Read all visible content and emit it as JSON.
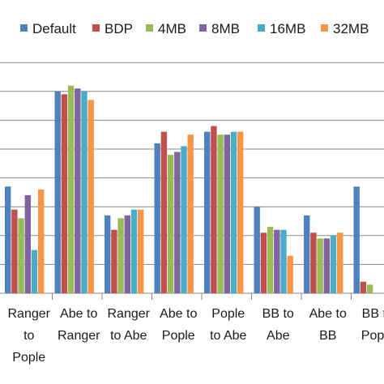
{
  "chart_data": {
    "type": "bar",
    "title": "",
    "xlabel": "",
    "ylabel": "",
    "ylim": [
      0,
      10
    ],
    "grid": true,
    "legend_position": "top",
    "categories": [
      [
        "Ranger",
        "to",
        "Pople"
      ],
      [
        "Abe to",
        "Ranger"
      ],
      [
        "Ranger",
        "to Abe"
      ],
      [
        "Abe to",
        "Pople"
      ],
      [
        "Pople",
        "to Abe"
      ],
      [
        "BB to",
        "Abe"
      ],
      [
        "Abe to",
        "BB"
      ],
      [
        "BB to",
        "Pople"
      ]
    ],
    "series": [
      {
        "name": "Default",
        "color": "#4F81BD",
        "values": [
          3.7,
          7.0,
          2.7,
          5.2,
          5.6,
          3.0,
          2.7,
          3.7
        ]
      },
      {
        "name": "BDP",
        "color": "#C0504D",
        "values": [
          2.9,
          6.9,
          2.2,
          5.6,
          5.8,
          2.1,
          2.1,
          0.4
        ]
      },
      {
        "name": "4MB",
        "color": "#9BBB59",
        "values": [
          2.6,
          7.2,
          2.6,
          4.8,
          5.5,
          2.3,
          1.9,
          0.3
        ]
      },
      {
        "name": "8MB",
        "color": "#8064A2",
        "values": [
          3.4,
          7.1,
          2.7,
          4.9,
          5.5,
          2.2,
          1.9,
          0.0
        ]
      },
      {
        "name": "16MB",
        "color": "#4BACC6",
        "values": [
          1.5,
          7.0,
          2.9,
          5.1,
          5.6,
          2.2,
          2.0,
          0.0
        ]
      },
      {
        "name": "32MB",
        "color": "#F79646",
        "values": [
          3.6,
          6.7,
          2.9,
          5.5,
          5.6,
          1.3,
          2.1,
          0.0
        ]
      }
    ]
  }
}
